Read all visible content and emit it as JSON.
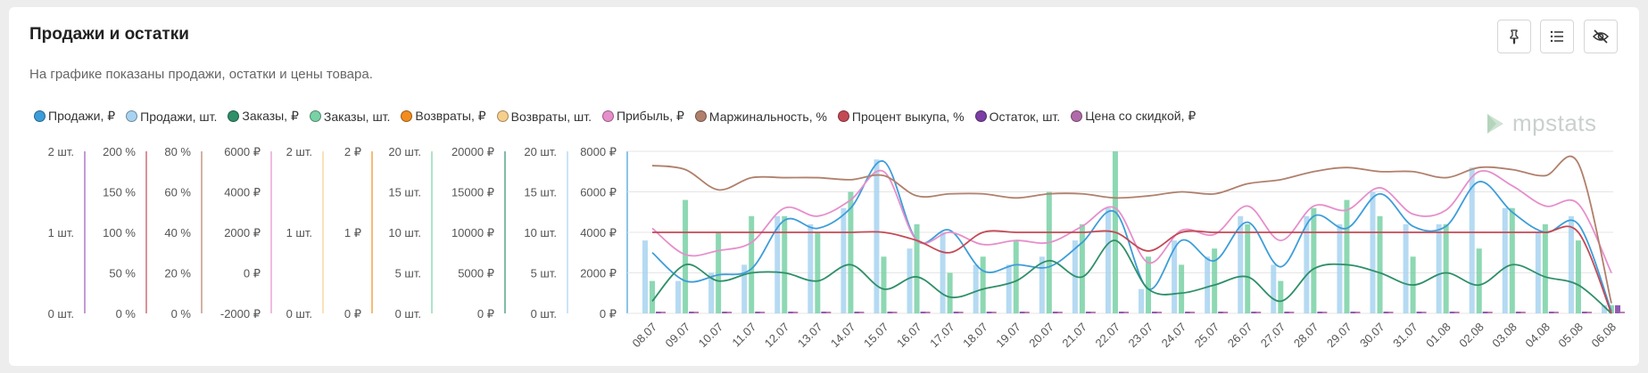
{
  "header": {
    "title": "Продажи и остатки",
    "subtitle": "На графике показаны продажи, остатки и цены товара."
  },
  "toolbar": {
    "pin_icon": "pin-icon",
    "list_icon": "list-icon",
    "hide_icon": "eye-off-icon"
  },
  "logo": {
    "text": "mpstats"
  },
  "legend": [
    {
      "label": "Продажи, ₽",
      "color": "#3d9dd9"
    },
    {
      "label": "Продажи, шт.",
      "color": "#a8d3f0"
    },
    {
      "label": "Заказы, ₽",
      "color": "#2f8f68"
    },
    {
      "label": "Заказы, шт.",
      "color": "#79d1a6"
    },
    {
      "label": "Возвраты, ₽",
      "color": "#f28c1e"
    },
    {
      "label": "Возвраты, шт.",
      "color": "#f7cf8d"
    },
    {
      "label": "Прибыль, ₽",
      "color": "#e68fcb"
    },
    {
      "label": "Маржинальность, %",
      "color": "#b0806c"
    },
    {
      "label": "Процент выкупа, %",
      "color": "#c24a55"
    },
    {
      "label": "Остаток, шт.",
      "color": "#7b3fa3"
    },
    {
      "label": "Цена со скидкой, ₽",
      "color": "#b06aa8"
    }
  ],
  "chart_data": {
    "type": "bar",
    "categories": [
      "08.07",
      "09.07",
      "10.07",
      "11.07",
      "12.07",
      "13.07",
      "14.07",
      "15.07",
      "16.07",
      "17.07",
      "18.07",
      "19.07",
      "20.07",
      "21.07",
      "22.07",
      "23.07",
      "24.07",
      "25.07",
      "26.07",
      "27.07",
      "28.07",
      "29.07",
      "30.07",
      "31.07",
      "01.08",
      "02.08",
      "03.08",
      "04.08",
      "05.08",
      "06.08"
    ],
    "axes": [
      {
        "ticks": [
          "2 шт.",
          "1 шт.",
          "0 шт."
        ],
        "color": "#9b59b6"
      },
      {
        "ticks": [
          "200 %",
          "150 %",
          "100 %",
          "50 %",
          "0 %"
        ],
        "color": "#c24a55"
      },
      {
        "ticks": [
          "80 %",
          "60 %",
          "40 %",
          "20 %",
          "0 %"
        ],
        "color": "#b0806c"
      },
      {
        "ticks": [
          "6000 ₽",
          "4000 ₽",
          "2000 ₽",
          "0 ₽",
          "-2000 ₽"
        ],
        "color": "#e68fcb"
      },
      {
        "ticks": [
          "2 шт.",
          "1 шт.",
          "0 шт."
        ],
        "color": "#f7cf8d"
      },
      {
        "ticks": [
          "2 ₽",
          "1 ₽",
          "0 ₽"
        ],
        "color": "#f28c1e"
      },
      {
        "ticks": [
          "20 шт.",
          "15 шт.",
          "10 шт.",
          "5 шт.",
          "0 шт."
        ],
        "color": "#79d1a6"
      },
      {
        "ticks": [
          "20000 ₽",
          "15000 ₽",
          "10000 ₽",
          "5000 ₽",
          "0 ₽"
        ],
        "color": "#2f8f68"
      },
      {
        "ticks": [
          "20 шт.",
          "15 шт.",
          "10 шт.",
          "5 шт.",
          "0 шт."
        ],
        "color": "#a8d3f0"
      },
      {
        "ticks": [
          "8000 ₽",
          "6000 ₽",
          "4000 ₽",
          "2000 ₽",
          "0 ₽"
        ],
        "color": "#3d9dd9"
      }
    ],
    "ylim_main": [
      0,
      8000
    ],
    "grid": true,
    "series": [
      {
        "name": "Продажи, ₽",
        "kind": "line",
        "axis": "rub8000",
        "color": "#3d9dd9",
        "values": [
          3000,
          1600,
          1900,
          2200,
          4600,
          4200,
          5200,
          7500,
          3600,
          4100,
          2100,
          2400,
          2300,
          3500,
          5000,
          1200,
          3600,
          2600,
          4500,
          2300,
          4800,
          4200,
          5900,
          4300,
          4300,
          6500,
          5000,
          4000,
          4400,
          100
        ]
      },
      {
        "name": "Продажи, шт.",
        "kind": "bar",
        "axis": "sht20",
        "color": "#a8d3f0",
        "values": [
          9,
          4,
          5,
          6,
          12,
          11,
          13,
          19,
          8,
          10,
          6,
          6,
          7,
          9,
          13,
          3,
          9,
          7,
          12,
          6,
          12,
          11,
          15,
          11,
          11,
          18,
          13,
          10,
          12,
          1
        ]
      },
      {
        "name": "Заказы, ₽",
        "kind": "line",
        "axis": "rub20000",
        "color": "#2f8f68",
        "values": [
          1500,
          6000,
          4000,
          5000,
          5000,
          4000,
          6000,
          3000,
          4500,
          2000,
          3000,
          4000,
          6500,
          4500,
          9000,
          3000,
          2500,
          3500,
          4500,
          1500,
          5500,
          6000,
          5000,
          3500,
          5000,
          3500,
          6000,
          4500,
          3500,
          0
        ]
      },
      {
        "name": "Заказы, шт.",
        "kind": "bar",
        "axis": "sht20",
        "color": "#79d1a6",
        "values": [
          4,
          14,
          10,
          12,
          12,
          10,
          15,
          7,
          11,
          5,
          7,
          9,
          15,
          11,
          20,
          7,
          6,
          8,
          11,
          4,
          13,
          14,
          12,
          7,
          11,
          8,
          13,
          11,
          9,
          1
        ]
      },
      {
        "name": "Прибыль, ₽",
        "kind": "line",
        "axis": "rub6000",
        "color": "#e68fcb",
        "values": [
          2200,
          900,
          1100,
          1500,
          3200,
          2800,
          3600,
          5000,
          1600,
          2000,
          1400,
          1600,
          1500,
          2300,
          3200,
          500,
          2100,
          1900,
          3300,
          1600,
          3300,
          3100,
          4200,
          2900,
          3100,
          5000,
          4300,
          3300,
          3400,
          0
        ]
      },
      {
        "name": "Маржинальность, %",
        "kind": "line",
        "axis": "pct80",
        "color": "#b0806c",
        "values": [
          73,
          71,
          61,
          67,
          67,
          67,
          66,
          68,
          58,
          59,
          59,
          57,
          59,
          59,
          57,
          58,
          60,
          59,
          64,
          66,
          70,
          72,
          70,
          70,
          67,
          72,
          71,
          68,
          74,
          5
        ]
      },
      {
        "name": "Процент выкупа, %",
        "kind": "line",
        "axis": "pct200",
        "color": "#c24a55",
        "values": [
          100,
          100,
          100,
          100,
          100,
          100,
          100,
          100,
          90,
          75,
          100,
          100,
          100,
          100,
          100,
          77,
          100,
          100,
          100,
          100,
          100,
          100,
          100,
          100,
          100,
          100,
          100,
          100,
          100,
          0
        ]
      },
      {
        "name": "Остаток, шт.",
        "kind": "bar",
        "axis": "sht2",
        "color": "#7b3fa3",
        "values": [
          0,
          0,
          0,
          0,
          0,
          0,
          0,
          0,
          0,
          0,
          0,
          0,
          0,
          0,
          0,
          0,
          0,
          0,
          0,
          0,
          0,
          0,
          0,
          0,
          0,
          0,
          0,
          0,
          0,
          0.1
        ]
      },
      {
        "name": "Цена со скидкой, ₽",
        "kind": "bar",
        "axis": "rub2",
        "color": "#b06aa8",
        "values": [
          0,
          0,
          0,
          0,
          0,
          0,
          0,
          0,
          0,
          0,
          0,
          0,
          0,
          0,
          0,
          0,
          0,
          0,
          0,
          0,
          0,
          0,
          0,
          0,
          0,
          0,
          0,
          0,
          0,
          0
        ]
      }
    ]
  }
}
